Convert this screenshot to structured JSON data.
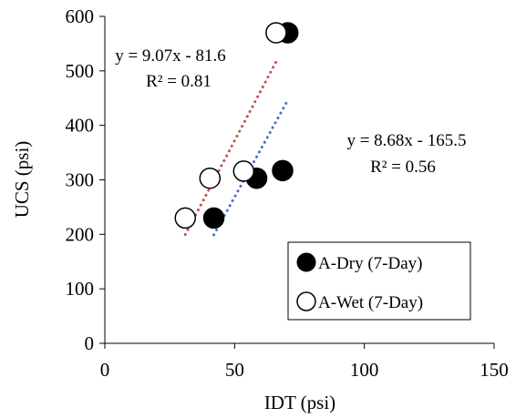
{
  "chart_data": {
    "type": "scatter",
    "title": "",
    "xlabel": "IDT (psi)",
    "ylabel": "UCS (psi)",
    "xlim": [
      0,
      150
    ],
    "ylim": [
      0,
      600
    ],
    "x_ticks": [
      0,
      50,
      100,
      150
    ],
    "y_ticks": [
      0,
      100,
      200,
      300,
      400,
      500,
      600
    ],
    "grid": false,
    "legend_position": "lower-right",
    "series": [
      {
        "name": "A-Dry (7-Day)",
        "marker": "filled-circle",
        "color": "#000000",
        "points": [
          {
            "x": 42,
            "y": 230
          },
          {
            "x": 58.5,
            "y": 303
          },
          {
            "x": 68.5,
            "y": 317
          },
          {
            "x": 70.5,
            "y": 570
          }
        ],
        "trendline": {
          "equation": "y = 8.68x - 165.5",
          "r_squared": "R² = 0.56",
          "slope": 8.68,
          "intercept": -165.5,
          "x_range": [
            42,
            70.5
          ],
          "color": "#4472C4"
        }
      },
      {
        "name": "A-Wet (7-Day)",
        "marker": "open-circle",
        "color": "#000000",
        "points": [
          {
            "x": 31,
            "y": 230
          },
          {
            "x": 40.5,
            "y": 303
          },
          {
            "x": 53.5,
            "y": 316
          },
          {
            "x": 66,
            "y": 570
          }
        ],
        "trendline": {
          "equation": "y = 9.07x - 81.6",
          "r_squared": "R² = 0.81",
          "slope": 9.07,
          "intercept": -81.6,
          "x_range": [
            31,
            66
          ],
          "color": "#C0504D"
        }
      }
    ]
  }
}
